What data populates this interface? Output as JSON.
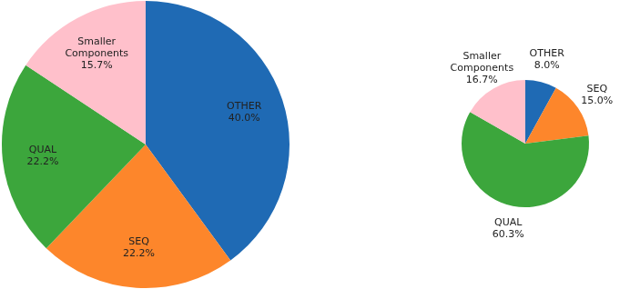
{
  "chart_data": [
    {
      "type": "pie",
      "categories": [
        "OTHER",
        "SEQ",
        "QUAL",
        "Smaller Components"
      ],
      "values": [
        40.0,
        22.2,
        22.2,
        15.7
      ],
      "value_labels": [
        "40.0%",
        "22.2%",
        "22.2%",
        "15.7%"
      ],
      "colors": [
        "#1f6ab4",
        "#fd862b",
        "#3ca63c",
        "#ffc0cb"
      ],
      "data_labels": true
    },
    {
      "type": "pie",
      "categories": [
        "OTHER",
        "SEQ",
        "QUAL",
        "Smaller Components"
      ],
      "values": [
        8.0,
        15.0,
        60.3,
        16.7
      ],
      "value_labels": [
        "8.0%",
        "15.0%",
        "60.3%",
        "16.7%"
      ],
      "colors": [
        "#1f6ab4",
        "#fd862b",
        "#3ca63c",
        "#ffc0cb"
      ],
      "data_labels": true
    }
  ]
}
